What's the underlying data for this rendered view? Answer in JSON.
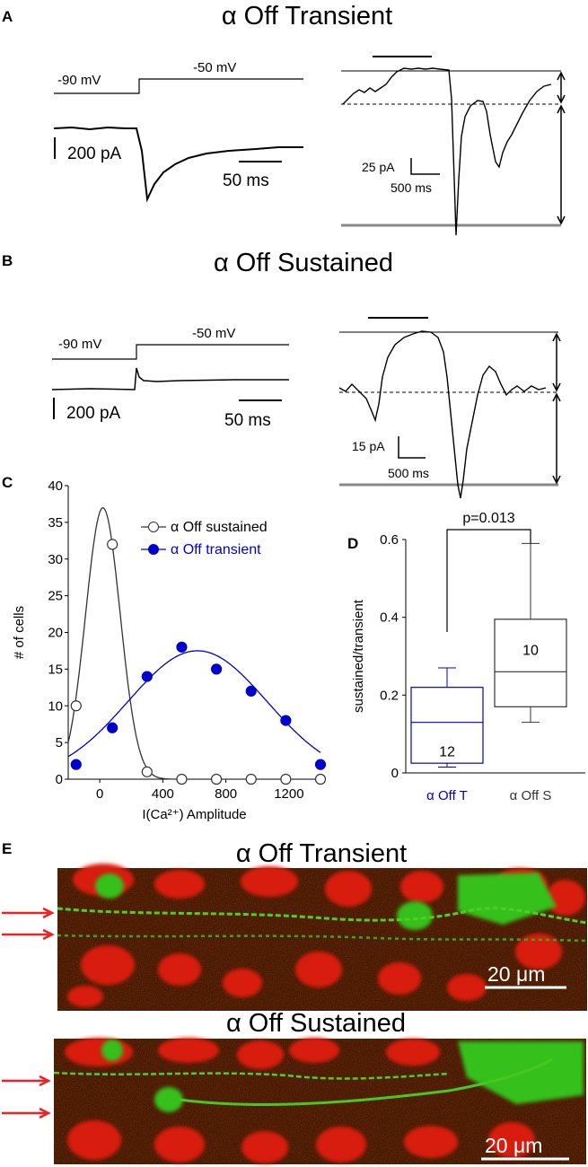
{
  "panels": {
    "A": {
      "letter": "A",
      "title": "α Off Transient",
      "v_hold": "-90 mV",
      "v_step": "-50 mV",
      "scale_current": "200 pA",
      "scale_time": "50 ms",
      "right_scale_current": "25 pA",
      "right_scale_time": "500 ms"
    },
    "B": {
      "letter": "B",
      "title": "α Off Sustained",
      "v_hold": "-90 mV",
      "v_step": "-50 mV",
      "scale_current": "200 pA",
      "scale_time": "50 ms",
      "right_scale_current": "15 pA",
      "right_scale_time": "500 ms"
    },
    "C": {
      "letter": "C"
    },
    "D": {
      "letter": "D"
    },
    "E": {
      "letter": "E",
      "title_top": "α Off Transient",
      "title_bottom": "α Off Sustained",
      "scale_top": "20 μm",
      "scale_bottom": "20 μm"
    }
  },
  "colors": {
    "blue": "#0000cc",
    "red_arrow": "#ee2222",
    "gray": "#888888"
  },
  "chart_data": [
    {
      "id": "C",
      "type": "scatter",
      "title": "",
      "xlabel": "I(Ca²⁺) Amplitude",
      "ylabel": "# of cells",
      "xlim": [
        -200,
        1400
      ],
      "ylim": [
        0,
        40
      ],
      "xticks": [
        0,
        400,
        800,
        1200
      ],
      "yticks": [
        0,
        5,
        10,
        15,
        20,
        25,
        30,
        35,
        40
      ],
      "legend": [
        "α Off sustained",
        "α Off transient"
      ],
      "legend_position": "top-right",
      "series": [
        {
          "name": "α Off sustained",
          "color": "#333333",
          "marker": "open-circle",
          "x": [
            -150,
            80,
            300,
            520,
            740,
            960,
            1180,
            1400
          ],
          "y": [
            10,
            32,
            1,
            0,
            0,
            0,
            0,
            0
          ],
          "fit": {
            "amplitude": 37,
            "center": 20,
            "sigma": 110
          }
        },
        {
          "name": "α Off transient",
          "color": "#0000cc",
          "marker": "filled-circle",
          "x": [
            -150,
            80,
            300,
            520,
            740,
            960,
            1180,
            1400
          ],
          "y": [
            2,
            7,
            14,
            18,
            15,
            12,
            8,
            2
          ],
          "fit": {
            "amplitude": 17.5,
            "center": 620,
            "sigma": 440
          }
        }
      ]
    },
    {
      "id": "D",
      "type": "box",
      "ylabel": "sustained/transient",
      "ylim": [
        0,
        0.6
      ],
      "yticks": [
        0,
        0.2,
        0.4,
        0.6
      ],
      "significance": "p=0.013",
      "categories": [
        "α Off T",
        "α Off S"
      ],
      "boxes": [
        {
          "name": "α Off T",
          "color": "#0000cc",
          "whisker_low": 0.015,
          "q1": 0.025,
          "median": 0.13,
          "q3": 0.22,
          "whisker_high": 0.27,
          "n": "12"
        },
        {
          "name": "α Off S",
          "color": "#333333",
          "whisker_low": 0.13,
          "q1": 0.17,
          "median": 0.26,
          "q3": 0.395,
          "whisker_high": 0.59,
          "n": "10"
        }
      ]
    }
  ]
}
